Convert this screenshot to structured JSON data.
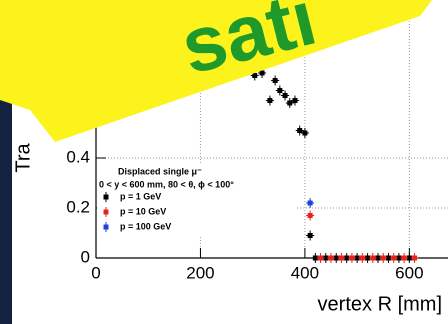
{
  "chart_data": {
    "type": "scatter",
    "y_label": "Tra",
    "x_label": "vertex R [mm]",
    "legend_title": "Displaced single μ⁻",
    "legend_subtitle": "0 < y < 600 mm, 80 < θ, ϕ < 100°",
    "xlim": [
      0,
      674
    ],
    "ylim": [
      0,
      1.032
    ],
    "xticks": [
      0,
      200,
      400,
      600
    ],
    "yticks": [
      0,
      0.2,
      0.4
    ],
    "grid": true,
    "series": [
      {
        "name": "p = 1 GeV",
        "color": "#000000",
        "x": [
          304,
          318,
          333,
          343,
          352,
          362,
          371,
          381,
          390,
          400,
          410,
          420,
          440,
          460,
          480,
          500,
          520,
          540,
          560,
          580,
          600
        ],
        "values": [
          0.73,
          0.74,
          0.63,
          0.71,
          0.67,
          0.65,
          0.62,
          0.63,
          0.51,
          0.5,
          0.09,
          0,
          0,
          0,
          0,
          0,
          0,
          0,
          0,
          0,
          0
        ]
      },
      {
        "name": "p = 10 GeV",
        "color": "#e8231c",
        "x": [
          410,
          430,
          450,
          470,
          490,
          510,
          530,
          550,
          570,
          590,
          610
        ],
        "values": [
          0.17,
          0,
          0,
          0,
          0,
          0,
          0,
          0,
          0,
          0,
          0
        ]
      },
      {
        "name": "p = 100 GeV",
        "color": "#1f3fe0",
        "x": [
          410
        ],
        "values": [
          0.22
        ]
      }
    ]
  },
  "note": {
    "text": "sati"
  }
}
